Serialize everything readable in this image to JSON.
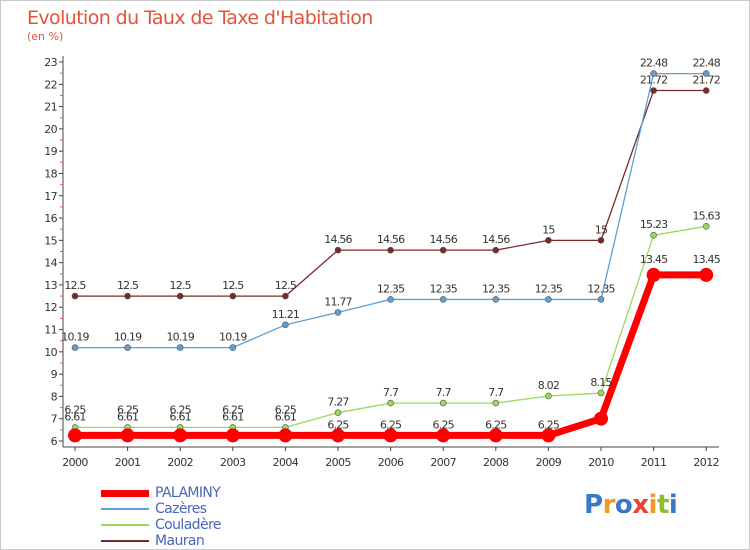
{
  "title": "Evolution du Taux de Taxe d'Habitation",
  "unit": "(en %)",
  "logo": {
    "text": "Proxiti",
    "colors": [
      "#3a78c9",
      "#f29a24",
      "#3a78c9",
      "#e8432e",
      "#f29a24",
      "#8bbf2b",
      "#3a78c9"
    ]
  },
  "chart_data": {
    "type": "line",
    "title": "Evolution du Taux de Taxe d'Habitation",
    "ylabel": "(en %)",
    "xlabel": "",
    "ylim": [
      6,
      23
    ],
    "yticks": [
      6,
      7,
      8,
      9,
      10,
      11,
      12,
      13,
      14,
      15,
      16,
      17,
      18,
      19,
      20,
      21,
      22,
      23
    ],
    "categories": [
      "2000",
      "2001",
      "2002",
      "2003",
      "2004",
      "2005",
      "2006",
      "2007",
      "2008",
      "2009",
      "2010",
      "2011",
      "2012"
    ],
    "grid": false,
    "legend": "bottom-left",
    "series": [
      {
        "name": "Mauran",
        "color": "#7a2a2a",
        "values": [
          12.5,
          12.5,
          12.5,
          12.5,
          12.5,
          14.56,
          14.56,
          14.56,
          14.56,
          15,
          15,
          21.72,
          21.72
        ],
        "labels": [
          "12.5",
          "12.5",
          "12.5",
          "12.5",
          "12.5",
          "14.56",
          "14.56",
          "14.56",
          "14.56",
          "15",
          "15",
          "21.72",
          "21.72"
        ],
        "show_labels": true,
        "label_offsets": [
          -11,
          -11,
          -11,
          -11,
          -11,
          -11,
          -11,
          -11,
          -11,
          -11,
          -11,
          -11,
          -11
        ]
      },
      {
        "name": "Cazères",
        "color": "#5f9fd4",
        "values": [
          10.19,
          10.19,
          10.19,
          10.19,
          11.21,
          11.77,
          12.35,
          12.35,
          12.35,
          12.35,
          12.35,
          22.48,
          22.48
        ],
        "labels": [
          "10.19",
          "10.19",
          "10.19",
          "10.19",
          "11.21",
          "11.77",
          "12.35",
          "12.35",
          "12.35",
          "12.35",
          "12.35",
          "22.48",
          "22.48"
        ],
        "show_labels": true,
        "label_offsets": [
          -11,
          -11,
          -11,
          -11,
          -11,
          -11,
          -11,
          -11,
          -11,
          -11,
          -11,
          -11,
          -11
        ]
      },
      {
        "name": "Couladère",
        "color": "#9ad95a",
        "values": [
          6.61,
          6.61,
          6.61,
          6.61,
          6.61,
          7.27,
          7.7,
          7.7,
          7.7,
          8.02,
          8.15,
          15.23,
          15.63
        ],
        "labels": [
          "6.61",
          "6.61",
          "6.61",
          "6.61",
          "6.61",
          "7.27",
          "7.7",
          "7.7",
          "7.7",
          "8.02",
          "8.15",
          "15.23",
          "15.63"
        ],
        "show_labels": true,
        "label_offsets": [
          -11,
          -11,
          -11,
          -11,
          -11,
          -11,
          -11,
          -11,
          -11,
          -11,
          -11,
          -11,
          -11
        ]
      },
      {
        "name": "PALAMINY",
        "color": "#ff0000",
        "values": [
          6.25,
          6.25,
          6.25,
          6.25,
          6.25,
          6.25,
          6.25,
          6.25,
          6.25,
          6.25,
          7.0,
          13.45,
          13.45
        ],
        "labels": [
          "6.25",
          "6.25",
          "6.25",
          "6.25",
          "6.25",
          "6.25",
          "6.25",
          "6.25",
          "6.25",
          "6.25",
          "",
          "13.45",
          "13.45"
        ],
        "show_labels": true,
        "label_offsets": [
          -26,
          -26,
          -26,
          -26,
          -26,
          -11,
          -11,
          -11,
          -11,
          -11,
          -11,
          -16,
          -16
        ]
      }
    ],
    "legend_entries": [
      {
        "name": "PALAMINY",
        "color": "#ff0000",
        "thick": true
      },
      {
        "name": "Cazères",
        "color": "#5f9fd4",
        "thick": false
      },
      {
        "name": "Couladère",
        "color": "#9ad95a",
        "thick": false
      },
      {
        "name": "Mauran",
        "color": "#7a2a2a",
        "thick": false
      }
    ]
  }
}
